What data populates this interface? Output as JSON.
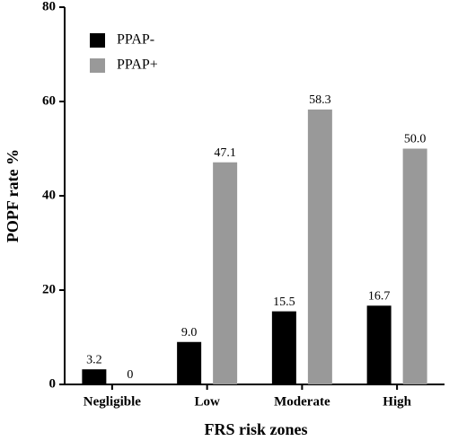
{
  "chart_data": {
    "type": "bar",
    "x_label": "FRS risk zones",
    "y_label": "POPF rate %",
    "categories": [
      "Negligible",
      "Low",
      "Moderate",
      "High"
    ],
    "series": [
      {
        "name": "PPAP-",
        "color": "#000000",
        "values": [
          3.2,
          9.0,
          15.5,
          16.7
        ],
        "value_labels": [
          "3.2",
          "9.0",
          "15.5",
          "16.7"
        ]
      },
      {
        "name": "PPAP+",
        "color": "#999999",
        "values": [
          0,
          47.1,
          58.3,
          50.0
        ],
        "value_labels": [
          "0",
          "47.1",
          "58.3",
          "50.0"
        ]
      }
    ],
    "ylim": [
      0,
      80
    ],
    "yticks": [
      0,
      20,
      40,
      60,
      80
    ],
    "grid": false,
    "legend": "top-left"
  }
}
